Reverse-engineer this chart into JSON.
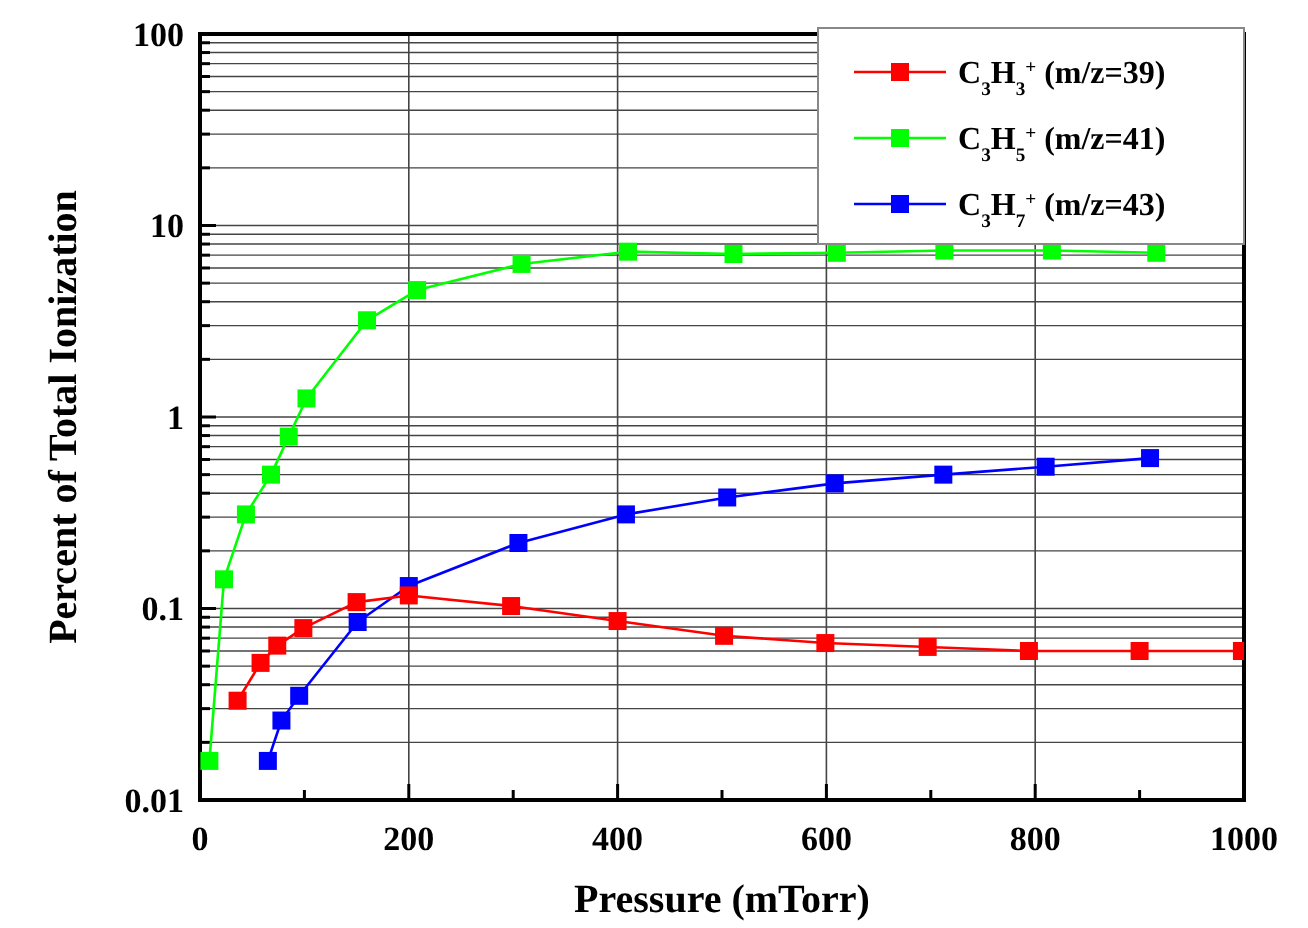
{
  "chart_data": {
    "type": "line",
    "xlabel": "Pressure (mTorr)",
    "ylabel": "Percent of Total Ionization",
    "log": "y",
    "grid": true,
    "legend": "top right",
    "marker": "square",
    "line_style": "solid",
    "xlim": [
      0,
      1000
    ],
    "ylim": [
      0.01,
      100
    ],
    "xticks": [
      0,
      {
        "value": 100,
        "label": null
      },
      200,
      {
        "value": 300,
        "label": null
      },
      400,
      {
        "value": 500,
        "label": null
      },
      600,
      {
        "value": 700,
        "label": null
      },
      800,
      {
        "value": 900,
        "label": null
      },
      1000
    ],
    "yticks": [
      0.01,
      {
        "value": 0.02,
        "label": null
      },
      {
        "value": 0.03,
        "label": null
      },
      {
        "value": 0.04,
        "label": null
      },
      {
        "value": 0.05,
        "label": null
      },
      {
        "value": 0.06,
        "label": null
      },
      {
        "value": 0.07,
        "label": null
      },
      {
        "value": 0.08,
        "label": null
      },
      {
        "value": 0.09,
        "label": null
      },
      0.1,
      {
        "value": 0.2,
        "label": null
      },
      {
        "value": 0.3,
        "label": null
      },
      {
        "value": 0.4,
        "label": null
      },
      {
        "value": 0.5,
        "label": null
      },
      {
        "value": 0.6,
        "label": null
      },
      {
        "value": 0.7,
        "label": null
      },
      {
        "value": 0.8,
        "label": null
      },
      {
        "value": 0.9,
        "label": null
      },
      1,
      {
        "value": 2,
        "label": null
      },
      {
        "value": 3,
        "label": null
      },
      {
        "value": 4,
        "label": null
      },
      {
        "value": 5,
        "label": null
      },
      {
        "value": 6,
        "label": null
      },
      {
        "value": 7,
        "label": null
      },
      {
        "value": 8,
        "label": null
      },
      {
        "value": 9,
        "label": null
      },
      10,
      {
        "value": 20,
        "label": null
      },
      {
        "value": 30,
        "label": null
      },
      {
        "value": 40,
        "label": null
      },
      {
        "value": 50,
        "label": null
      },
      {
        "value": 60,
        "label": null
      },
      {
        "value": 70,
        "label": null
      },
      {
        "value": 80,
        "label": null
      },
      {
        "value": 90,
        "label": null
      },
      100
    ],
    "series": [
      {
        "name": "C$_{3}$H$_{3}$$^{+}$ (m/z=39)",
        "color": "#ff0000",
        "x": [
          36,
          58,
          74,
          99,
          150,
          200,
          298,
          400,
          502,
          599,
          697,
          794,
          900,
          998
        ],
        "values": [
          0.033,
          0.052,
          0.064,
          0.079,
          0.108,
          0.117,
          0.103,
          0.086,
          0.072,
          0.066,
          0.063,
          0.06,
          0.06,
          0.06
        ]
      },
      {
        "name": "C$_{3}$H$_{5}$$^{+}$ (m/z=41)",
        "color": "#00ff00",
        "x": [
          9,
          23,
          44,
          68,
          85,
          102,
          160,
          208,
          308,
          410,
          511,
          610,
          713,
          816,
          916
        ],
        "values": [
          0.016,
          0.142,
          0.31,
          0.5,
          0.79,
          1.25,
          3.2,
          4.6,
          6.3,
          7.3,
          7.1,
          7.2,
          7.4,
          7.4,
          7.2
        ]
      },
      {
        "name": "C$_{3}$H$_{7}$$^{+}$ (m/z=43)",
        "color": "#0000ff",
        "x": [
          65,
          78,
          95,
          151,
          200,
          305,
          408,
          505,
          608,
          712,
          810,
          910
        ],
        "values": [
          0.016,
          0.026,
          0.035,
          0.085,
          0.131,
          0.22,
          0.31,
          0.38,
          0.45,
          0.5,
          0.55,
          0.61
        ]
      }
    ]
  }
}
